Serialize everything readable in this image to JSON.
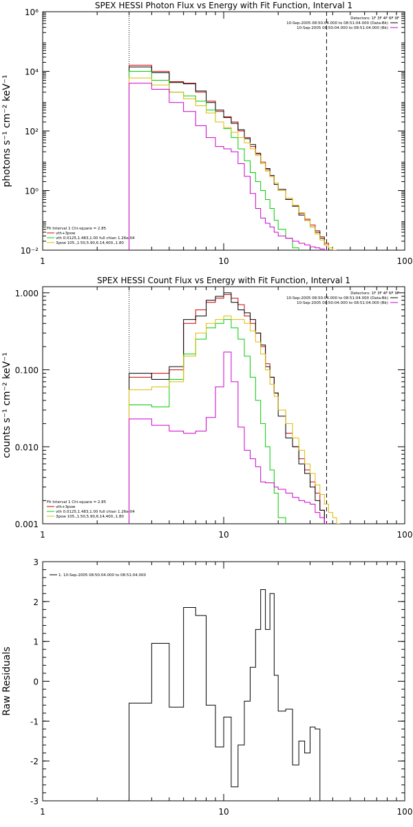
{
  "chart_data": [
    {
      "type": "line",
      "title": "SPEX HESSI Photon Flux vs Energy with Fit Function, Interval 1",
      "xlabel": "",
      "ylabel": "photons s^-1 cm^-2 keV^-1",
      "xlog": true,
      "ylog": true,
      "xlim": [
        1,
        100
      ],
      "ylim": [
        0.01,
        1000000
      ],
      "xticks": [
        1,
        10,
        100
      ],
      "xtick_labels": [
        "1",
        "10",
        "100"
      ],
      "yticks": [
        0.01,
        1,
        100,
        10000,
        1000000
      ],
      "ytick_labels": [
        "10⁻²",
        "10⁰",
        "10²",
        "10⁴",
        "10⁶"
      ],
      "vlines": [
        {
          "x": 3,
          "style": "dotted"
        },
        {
          "x": 37,
          "style": "dashed"
        }
      ],
      "legend_top": {
        "header": "Detectors: 1F 3F 4F 6F 9F",
        "entries": [
          {
            "text": "10-Sep-2005 08:50:04.000 to 08:51:04.000 (Data-Bk)",
            "color": "#000000"
          },
          {
            "text": "10-Sep-2005 08:50:04.000 to 08:51:04.000 (Bk)",
            "color": "#cc00cc"
          }
        ]
      },
      "legend_bottom": {
        "header": "Fit Interval 1   Chi-square = 2.85",
        "entries": [
          {
            "text": "vth+3pow",
            "color": "#cc0000"
          },
          {
            "text": "vth 0.0125,1.483,1.00  full chian 1.26e-04",
            "color": "#00cc00"
          },
          {
            "text": "3pow 105.,1.50,5.90,6.14,400.,1.80",
            "color": "#ddbb00"
          }
        ]
      },
      "edges": [
        3,
        4,
        5,
        6,
        7,
        8,
        9,
        10,
        11,
        12,
        13,
        14,
        15,
        16,
        17,
        18,
        19,
        20,
        22,
        24,
        26,
        28,
        30,
        32,
        34,
        36,
        38,
        40,
        42,
        44,
        46
      ],
      "series": [
        {
          "name": "vth+3pow",
          "color": "#cc0000",
          "values": [
            16000,
            10000,
            4500,
            4000,
            2000,
            1000,
            450,
            300,
            200,
            100,
            60,
            30,
            18,
            9,
            5,
            3,
            1.8,
            1.0,
            0.55,
            0.3,
            0.17,
            0.11,
            0.07,
            0.045,
            0.028,
            0.017,
            null,
            null,
            null,
            null
          ]
        },
        {
          "name": "Data-Bk",
          "color": "#000000",
          "values": [
            14000,
            9000,
            4200,
            3800,
            2200,
            900,
            500,
            280,
            180,
            110,
            55,
            35,
            17,
            8,
            5.5,
            3.2,
            1.6,
            1.1,
            0.5,
            0.3,
            0.15,
            0.1,
            0.06,
            0.04,
            0.025,
            0.015,
            null,
            null,
            null,
            null
          ]
        },
        {
          "name": "vth",
          "color": "#00cc00",
          "values": [
            10000,
            5000,
            2000,
            1500,
            1000,
            500,
            200,
            120,
            60,
            25,
            10,
            4,
            2,
            1,
            0.5,
            0.25,
            0.1,
            0.05,
            0.025,
            0.012,
            null,
            null,
            null,
            null,
            null,
            null,
            null,
            null,
            null,
            null
          ]
        },
        {
          "name": "3pow",
          "color": "#ddbb00",
          "values": [
            6000,
            3500,
            2000,
            1200,
            700,
            400,
            200,
            130,
            90,
            60,
            40,
            25,
            15,
            8,
            4.5,
            3,
            1.8,
            1.0,
            0.55,
            0.32,
            0.18,
            0.1,
            0.06,
            0.035,
            0.022,
            0.015,
            0.012,
            0.01,
            null,
            null
          ]
        },
        {
          "name": "Bk",
          "color": "#cc00cc",
          "values": [
            4000,
            2500,
            900,
            450,
            150,
            60,
            30,
            25,
            20,
            8,
            3,
            0.8,
            0.25,
            0.12,
            0.08,
            0.06,
            0.04,
            0.03,
            0.025,
            0.02,
            0.017,
            0.015,
            0.013,
            0.012,
            0.011,
            0.01,
            null,
            null,
            null,
            null
          ]
        }
      ]
    },
    {
      "type": "line",
      "title": "SPEX HESSI Count Flux vs Energy with Fit Function, Interval 1",
      "xlabel": "",
      "ylabel": "counts s^-1 cm^-2 keV^-1",
      "xlog": true,
      "ylog": true,
      "xlim": [
        1,
        100
      ],
      "ylim": [
        0.001,
        1.2
      ],
      "xticks": [
        1,
        10,
        100
      ],
      "xtick_labels": [
        "1",
        "10",
        "100"
      ],
      "yticks": [
        0.001,
        0.01,
        0.1,
        1
      ],
      "ytick_labels": [
        "0.001",
        "0.010",
        "0.100",
        "1.000"
      ],
      "vlines": [
        {
          "x": 3,
          "style": "dotted"
        },
        {
          "x": 37,
          "style": "dashed"
        }
      ],
      "legend_top": {
        "header": "Detectors: 1F 3F 4F 6F 9F",
        "entries": [
          {
            "text": "10-Sep-2005 08:50:04.000 to 08:51:04.000 (Data-Bk)",
            "color": "#000000"
          },
          {
            "text": "10-Sep-2005 08:50:04.000 to 08:51:04.000 (Bk)",
            "color": "#cc00cc"
          }
        ]
      },
      "legend_bottom": {
        "header": "Fit Interval 1   Chi-square = 2.85",
        "entries": [
          {
            "text": "vth+3pow",
            "color": "#cc0000"
          },
          {
            "text": "vth 0.0125,1.483,1.00  full chian 1.26e-04",
            "color": "#00cc00"
          },
          {
            "text": "3pow 105.,1.50,5.90,6.14,400.,1.80",
            "color": "#ddbb00"
          }
        ]
      },
      "edges": [
        3,
        4,
        5,
        6,
        7,
        8,
        9,
        10,
        11,
        12,
        13,
        14,
        15,
        16,
        17,
        18,
        19,
        20,
        22,
        24,
        26,
        28,
        30,
        32,
        34,
        36,
        38,
        40,
        42,
        44,
        46
      ],
      "series": [
        {
          "name": "vth+3pow",
          "color": "#cc0000",
          "values": [
            0.08,
            0.09,
            0.1,
            0.4,
            0.6,
            0.75,
            0.85,
            0.95,
            0.85,
            0.7,
            0.5,
            0.4,
            0.3,
            0.2,
            0.12,
            0.08,
            0.05,
            0.03,
            0.015,
            0.01,
            0.007,
            0.005,
            0.0035,
            0.0025,
            0.0015,
            null,
            null,
            null,
            null,
            null
          ]
        },
        {
          "name": "Data-Bk",
          "color": "#000000",
          "values": [
            0.09,
            0.075,
            0.11,
            0.45,
            0.5,
            0.8,
            0.9,
            1.0,
            0.75,
            0.6,
            0.55,
            0.45,
            0.3,
            0.21,
            0.11,
            0.08,
            0.05,
            0.025,
            0.013,
            0.01,
            0.006,
            0.0045,
            0.003,
            0.002,
            0.0015,
            null,
            null,
            null,
            null,
            null
          ]
        },
        {
          "name": "vth",
          "color": "#00cc00",
          "values": [
            0.035,
            0.033,
            0.075,
            0.16,
            0.25,
            0.35,
            0.4,
            0.45,
            0.35,
            0.25,
            0.15,
            0.08,
            0.04,
            0.02,
            0.01,
            0.005,
            0.0025,
            0.0012,
            null,
            null,
            null,
            null,
            null,
            null,
            null,
            null,
            null,
            null,
            null,
            null
          ]
        },
        {
          "name": "3pow",
          "color": "#ddbb00",
          "values": [
            0.055,
            0.06,
            0.07,
            0.15,
            0.3,
            0.4,
            0.45,
            0.5,
            0.45,
            0.45,
            0.4,
            0.32,
            0.23,
            0.16,
            0.1,
            0.065,
            0.045,
            0.03,
            0.02,
            0.013,
            0.009,
            0.006,
            0.0045,
            0.0032,
            0.0024,
            0.0018,
            0.0014,
            0.0012,
            0.001,
            null
          ]
        },
        {
          "name": "Bk",
          "color": "#cc00cc",
          "values": [
            0.023,
            0.019,
            0.016,
            0.015,
            0.016,
            0.024,
            0.06,
            0.17,
            0.07,
            0.018,
            0.009,
            0.007,
            0.0055,
            0.0035,
            0.0034,
            0.0034,
            0.003,
            0.0028,
            0.0025,
            0.0022,
            0.002,
            0.0019,
            0.0018,
            0.0014,
            0.0012,
            0.001,
            null,
            null,
            null,
            null
          ]
        }
      ]
    },
    {
      "type": "line",
      "title": "",
      "xlabel": "",
      "ylabel": "Raw Residuals",
      "xlog": true,
      "ylog": false,
      "xlim": [
        1,
        100
      ],
      "ylim": [
        -3,
        3
      ],
      "xticks": [
        1,
        10,
        100
      ],
      "xtick_labels": [
        "1",
        "10",
        "100"
      ],
      "yticks": [
        -3,
        -2,
        -1,
        0,
        1,
        2,
        3
      ],
      "ytick_labels": [
        "-3",
        "-2",
        "-1",
        "0",
        "1",
        "2",
        "3"
      ],
      "legend_top": {
        "header": "",
        "entries": [
          {
            "text": "1. 10-Sep-2005 08:50:04.000 to 08:51:04.000",
            "color": "#000000"
          }
        ]
      },
      "edges": [
        3,
        4,
        5,
        6,
        7,
        8,
        9,
        10,
        11,
        12,
        13,
        14,
        15,
        16,
        17,
        18,
        19,
        20,
        22,
        24,
        26,
        28,
        30,
        32,
        34,
        36,
        38
      ],
      "start_from": -3,
      "end_to": -3,
      "series": [
        {
          "name": "1. 10-Sep-2005 08:50:04.000 to 08:51:04.000",
          "color": "#000000",
          "values": [
            -0.55,
            0.95,
            -0.65,
            1.85,
            1.65,
            -0.6,
            -1.65,
            -0.9,
            -2.65,
            -1.6,
            -0.5,
            0.35,
            1.3,
            2.3,
            1.3,
            2.2,
            0.15,
            -0.75,
            -0.7,
            -2.1,
            -1.5,
            -1.8,
            -1.15,
            -1.2,
            null,
            null
          ]
        }
      ]
    }
  ]
}
